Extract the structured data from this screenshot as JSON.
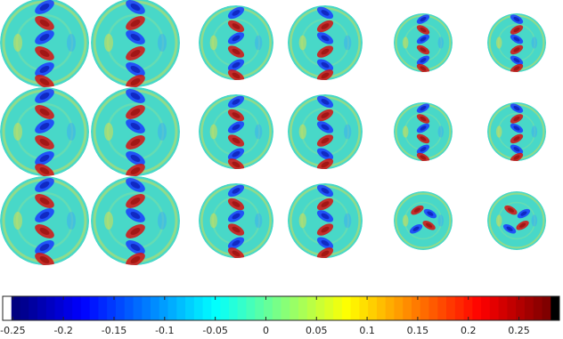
{
  "chart_data": {
    "type": "colorbar",
    "colormap": "jet",
    "xlim": [
      -0.26,
      0.29
    ],
    "xticks": [
      -0.25,
      -0.2,
      -0.15,
      -0.1,
      -0.05,
      0,
      0.05,
      0.1,
      0.15,
      0.2,
      0.25
    ]
  }
}
